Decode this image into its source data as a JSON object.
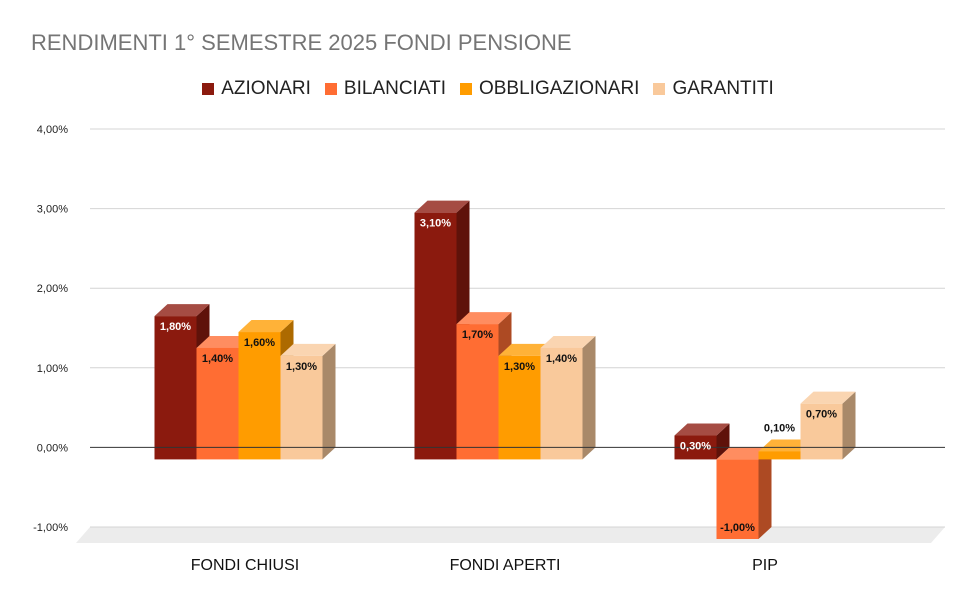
{
  "chart_data": {
    "type": "bar",
    "title": "RENDIMENTI 1° SEMESTRE 2025 FONDI PENSIONE",
    "categories": [
      "FONDI CHIUSI",
      "FONDI APERTI",
      "PIP"
    ],
    "series": [
      {
        "name": "AZIONARI",
        "color": "#8b1a0e",
        "values": [
          1.8,
          3.1,
          0.3
        ],
        "labels": [
          "1,80%",
          "3,10%",
          "0,30%"
        ]
      },
      {
        "name": "BILANCIATI",
        "color": "#ff6d33",
        "values": [
          1.4,
          1.7,
          -1.0
        ],
        "labels": [
          "1,40%",
          "1,70%",
          "-1,00%"
        ]
      },
      {
        "name": "OBBLIGAZIONARI",
        "color": "#ff9c00",
        "values": [
          1.6,
          1.3,
          0.1
        ],
        "labels": [
          "1,60%",
          "1,30%",
          "0,10%"
        ]
      },
      {
        "name": "GARANTITI",
        "color": "#f9c99b",
        "values": [
          1.3,
          1.4,
          0.7
        ],
        "labels": [
          "1,30%",
          "1,40%",
          "0,70%"
        ]
      }
    ],
    "ylim": [
      -1,
      4
    ],
    "yticks": [
      -1,
      0,
      1,
      2,
      3,
      4
    ],
    "ytick_labels": [
      "-1,00%",
      "0,00%",
      "1,00%",
      "2,00%",
      "3,00%",
      "4,00%"
    ],
    "grid": true,
    "legend_position": "top-center",
    "xlabel": "",
    "ylabel": ""
  }
}
